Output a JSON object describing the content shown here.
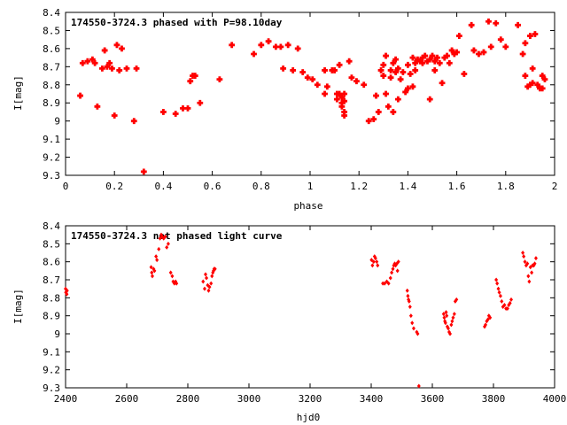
{
  "chart_data": [
    {
      "type": "scatter",
      "title": "174550-3724.3 phased with P=98.10day",
      "xlabel": "phase",
      "ylabel": "I[mag]",
      "xlim": [
        0,
        2
      ],
      "ylim": [
        8.4,
        9.3
      ],
      "y_inverted": true,
      "x_ticks": [
        "0",
        "0.2",
        "0.4",
        "0.6",
        "0.8",
        "1",
        "1.2",
        "1.4",
        "1.6",
        "1.8",
        "2"
      ],
      "y_ticks": [
        "8.4",
        "8.5",
        "8.6",
        "8.7",
        "8.8",
        "8.9",
        "9",
        "9.1",
        "9.2",
        "9.3"
      ],
      "grid": false,
      "marker_color": "#ff0000",
      "series": [
        {
          "values": [
            [
              0.06,
              8.86
            ],
            [
              0.07,
              8.68
            ],
            [
              0.09,
              8.67
            ],
            [
              0.11,
              8.66
            ],
            [
              0.12,
              8.68
            ],
            [
              0.13,
              8.92
            ],
            [
              0.15,
              8.71
            ],
            [
              0.16,
              8.61
            ],
            [
              0.17,
              8.7
            ],
            [
              0.18,
              8.68
            ],
            [
              0.19,
              8.71
            ],
            [
              0.2,
              8.97
            ],
            [
              0.21,
              8.58
            ],
            [
              0.22,
              8.72
            ],
            [
              0.23,
              8.6
            ],
            [
              0.25,
              8.71
            ],
            [
              0.28,
              9.0
            ],
            [
              0.29,
              8.71
            ],
            [
              0.32,
              9.28
            ],
            [
              0.4,
              8.95
            ],
            [
              0.45,
              8.96
            ],
            [
              0.48,
              8.93
            ],
            [
              0.5,
              8.93
            ],
            [
              0.51,
              8.78
            ],
            [
              0.52,
              8.75
            ],
            [
              0.53,
              8.75
            ],
            [
              0.55,
              8.9
            ],
            [
              0.63,
              8.77
            ],
            [
              0.68,
              8.58
            ],
            [
              0.77,
              8.63
            ],
            [
              0.8,
              8.58
            ],
            [
              0.83,
              8.56
            ],
            [
              0.86,
              8.59
            ],
            [
              0.88,
              8.59
            ],
            [
              0.89,
              8.71
            ],
            [
              0.91,
              8.58
            ],
            [
              0.93,
              8.72
            ],
            [
              0.95,
              8.6
            ],
            [
              0.97,
              8.73
            ],
            [
              0.99,
              8.76
            ],
            [
              1.01,
              8.77
            ],
            [
              1.03,
              8.8
            ],
            [
              1.06,
              8.72
            ],
            [
              1.06,
              8.85
            ],
            [
              1.07,
              8.81
            ],
            [
              1.09,
              8.72
            ],
            [
              1.1,
              8.72
            ],
            [
              1.11,
              8.85
            ],
            [
              1.11,
              8.88
            ],
            [
              1.12,
              8.69
            ],
            [
              1.12,
              8.85
            ],
            [
              1.13,
              8.87
            ],
            [
              1.13,
              8.9
            ],
            [
              1.13,
              8.92
            ],
            [
              1.14,
              8.85
            ],
            [
              1.14,
              8.89
            ],
            [
              1.14,
              8.95
            ],
            [
              1.14,
              8.97
            ],
            [
              1.16,
              8.67
            ],
            [
              1.17,
              8.76
            ],
            [
              1.19,
              8.78
            ],
            [
              1.22,
              8.8
            ],
            [
              1.24,
              9.0
            ],
            [
              1.26,
              8.99
            ],
            [
              1.27,
              8.86
            ],
            [
              1.28,
              8.95
            ],
            [
              1.29,
              8.72
            ],
            [
              1.3,
              8.69
            ],
            [
              1.3,
              8.75
            ],
            [
              1.31,
              8.64
            ],
            [
              1.31,
              8.85
            ],
            [
              1.32,
              8.92
            ],
            [
              1.33,
              8.72
            ],
            [
              1.33,
              8.76
            ],
            [
              1.34,
              8.95
            ],
            [
              1.34,
              8.68
            ],
            [
              1.35,
              8.66
            ],
            [
              1.35,
              8.73
            ],
            [
              1.36,
              8.88
            ],
            [
              1.36,
              8.71
            ],
            [
              1.37,
              8.77
            ],
            [
              1.38,
              8.73
            ],
            [
              1.39,
              8.84
            ],
            [
              1.4,
              8.69
            ],
            [
              1.4,
              8.82
            ],
            [
              1.41,
              8.74
            ],
            [
              1.42,
              8.81
            ],
            [
              1.42,
              8.65
            ],
            [
              1.43,
              8.72
            ],
            [
              1.43,
              8.68
            ],
            [
              1.44,
              8.66
            ],
            [
              1.45,
              8.67
            ],
            [
              1.46,
              8.65
            ],
            [
              1.46,
              8.68
            ],
            [
              1.47,
              8.64
            ],
            [
              1.48,
              8.67
            ],
            [
              1.49,
              8.88
            ],
            [
              1.49,
              8.66
            ],
            [
              1.5,
              8.64
            ],
            [
              1.51,
              8.67
            ],
            [
              1.51,
              8.72
            ],
            [
              1.52,
              8.65
            ],
            [
              1.53,
              8.68
            ],
            [
              1.54,
              8.79
            ],
            [
              1.55,
              8.65
            ],
            [
              1.56,
              8.64
            ],
            [
              1.57,
              8.68
            ],
            [
              1.58,
              8.61
            ],
            [
              1.59,
              8.63
            ],
            [
              1.6,
              8.62
            ],
            [
              1.61,
              8.53
            ],
            [
              1.63,
              8.74
            ],
            [
              1.66,
              8.47
            ],
            [
              1.67,
              8.61
            ],
            [
              1.69,
              8.63
            ],
            [
              1.71,
              8.62
            ],
            [
              1.73,
              8.45
            ],
            [
              1.74,
              8.59
            ],
            [
              1.76,
              8.46
            ],
            [
              1.78,
              8.55
            ],
            [
              1.8,
              8.59
            ],
            [
              1.85,
              8.47
            ],
            [
              1.87,
              8.63
            ],
            [
              1.88,
              8.75
            ],
            [
              1.88,
              8.57
            ],
            [
              1.89,
              8.81
            ],
            [
              1.9,
              8.8
            ],
            [
              1.9,
              8.53
            ],
            [
              1.91,
              8.71
            ],
            [
              1.91,
              8.79
            ],
            [
              1.92,
              8.52
            ],
            [
              1.93,
              8.8
            ],
            [
              1.94,
              8.82
            ],
            [
              1.95,
              8.75
            ],
            [
              1.95,
              8.82
            ],
            [
              1.96,
              8.77
            ]
          ]
        }
      ]
    },
    {
      "type": "scatter",
      "title": "174550-3724.3 not phased light curve",
      "xlabel": "hjd0",
      "ylabel": "I[mag]",
      "xlim": [
        2400,
        4000
      ],
      "ylim": [
        8.4,
        9.3
      ],
      "y_inverted": true,
      "x_ticks": [
        "2400",
        "2600",
        "2800",
        "3000",
        "3200",
        "3400",
        "3600",
        "3800",
        "4000"
      ],
      "y_ticks": [
        "8.4",
        "8.5",
        "8.6",
        "8.7",
        "8.8",
        "8.9",
        "9",
        "9.1",
        "9.2",
        "9.3"
      ],
      "grid": false,
      "marker_color": "#ff0000",
      "series": [
        {
          "values": [
            [
              2400,
              8.75
            ],
            [
              2401,
              8.77
            ],
            [
              2404,
              8.78
            ],
            [
              2405,
              8.76
            ],
            [
              2680,
              8.63
            ],
            [
              2682,
              8.66
            ],
            [
              2684,
              8.68
            ],
            [
              2688,
              8.64
            ],
            [
              2691,
              8.65
            ],
            [
              2696,
              8.57
            ],
            [
              2699,
              8.59
            ],
            [
              2705,
              8.53
            ],
            [
              2709,
              8.47
            ],
            [
              2713,
              8.45
            ],
            [
              2716,
              8.46
            ],
            [
              2721,
              8.47
            ],
            [
              2726,
              8.46
            ],
            [
              2731,
              8.52
            ],
            [
              2736,
              8.5
            ],
            [
              2744,
              8.66
            ],
            [
              2749,
              8.68
            ],
            [
              2752,
              8.71
            ],
            [
              2756,
              8.72
            ],
            [
              2760,
              8.71
            ],
            [
              2763,
              8.72
            ],
            [
              2850,
              8.71
            ],
            [
              2855,
              8.75
            ],
            [
              2858,
              8.67
            ],
            [
              2861,
              8.69
            ],
            [
              2865,
              8.73
            ],
            [
              2868,
              8.76
            ],
            [
              2871,
              8.74
            ],
            [
              2876,
              8.72
            ],
            [
              2879,
              8.68
            ],
            [
              2882,
              8.66
            ],
            [
              2884,
              8.65
            ],
            [
              2886,
              8.64
            ],
            [
              2889,
              8.64
            ],
            [
              3401,
              8.59
            ],
            [
              3404,
              8.62
            ],
            [
              3408,
              8.6
            ],
            [
              3411,
              8.57
            ],
            [
              3414,
              8.58
            ],
            [
              3418,
              8.6
            ],
            [
              3421,
              8.62
            ],
            [
              3438,
              8.72
            ],
            [
              3444,
              8.72
            ],
            [
              3451,
              8.71
            ],
            [
              3457,
              8.72
            ],
            [
              3463,
              8.69
            ],
            [
              3467,
              8.66
            ],
            [
              3471,
              8.64
            ],
            [
              3474,
              8.62
            ],
            [
              3477,
              8.61
            ],
            [
              3480,
              8.62
            ],
            [
              3484,
              8.61
            ],
            [
              3486,
              8.65
            ],
            [
              3489,
              8.6
            ],
            [
              3518,
              8.76
            ],
            [
              3520,
              8.79
            ],
            [
              3522,
              8.81
            ],
            [
              3524,
              8.82
            ],
            [
              3527,
              8.85
            ],
            [
              3530,
              8.9
            ],
            [
              3534,
              8.94
            ],
            [
              3539,
              8.97
            ],
            [
              3549,
              8.99
            ],
            [
              3552,
              9.0
            ],
            [
              3556,
              9.29
            ],
            [
              3637,
              8.89
            ],
            [
              3639,
              8.91
            ],
            [
              3641,
              8.93
            ],
            [
              3643,
              8.94
            ],
            [
              3645,
              8.88
            ],
            [
              3647,
              8.9
            ],
            [
              3649,
              8.96
            ],
            [
              3652,
              8.97
            ],
            [
              3655,
              8.99
            ],
            [
              3658,
              9.0
            ],
            [
              3662,
              8.95
            ],
            [
              3665,
              8.93
            ],
            [
              3668,
              8.91
            ],
            [
              3672,
              8.89
            ],
            [
              3675,
              8.82
            ],
            [
              3679,
              8.81
            ],
            [
              3771,
              8.96
            ],
            [
              3774,
              8.95
            ],
            [
              3778,
              8.93
            ],
            [
              3782,
              8.92
            ],
            [
              3785,
              8.9
            ],
            [
              3789,
              8.91
            ],
            [
              3809,
              8.7
            ],
            [
              3812,
              8.72
            ],
            [
              3816,
              8.75
            ],
            [
              3819,
              8.77
            ],
            [
              3823,
              8.79
            ],
            [
              3827,
              8.82
            ],
            [
              3831,
              8.85
            ],
            [
              3836,
              8.84
            ],
            [
              3841,
              8.86
            ],
            [
              3846,
              8.86
            ],
            [
              3850,
              8.84
            ],
            [
              3854,
              8.83
            ],
            [
              3858,
              8.81
            ],
            [
              3896,
              8.55
            ],
            [
              3899,
              8.57
            ],
            [
              3903,
              8.6
            ],
            [
              3907,
              8.62
            ],
            [
              3911,
              8.61
            ],
            [
              3914,
              8.68
            ],
            [
              3917,
              8.71
            ],
            [
              3921,
              8.63
            ],
            [
              3925,
              8.66
            ],
            [
              3928,
              8.62
            ],
            [
              3932,
              8.62
            ],
            [
              3935,
              8.61
            ],
            [
              3939,
              8.58
            ]
          ]
        }
      ]
    }
  ]
}
